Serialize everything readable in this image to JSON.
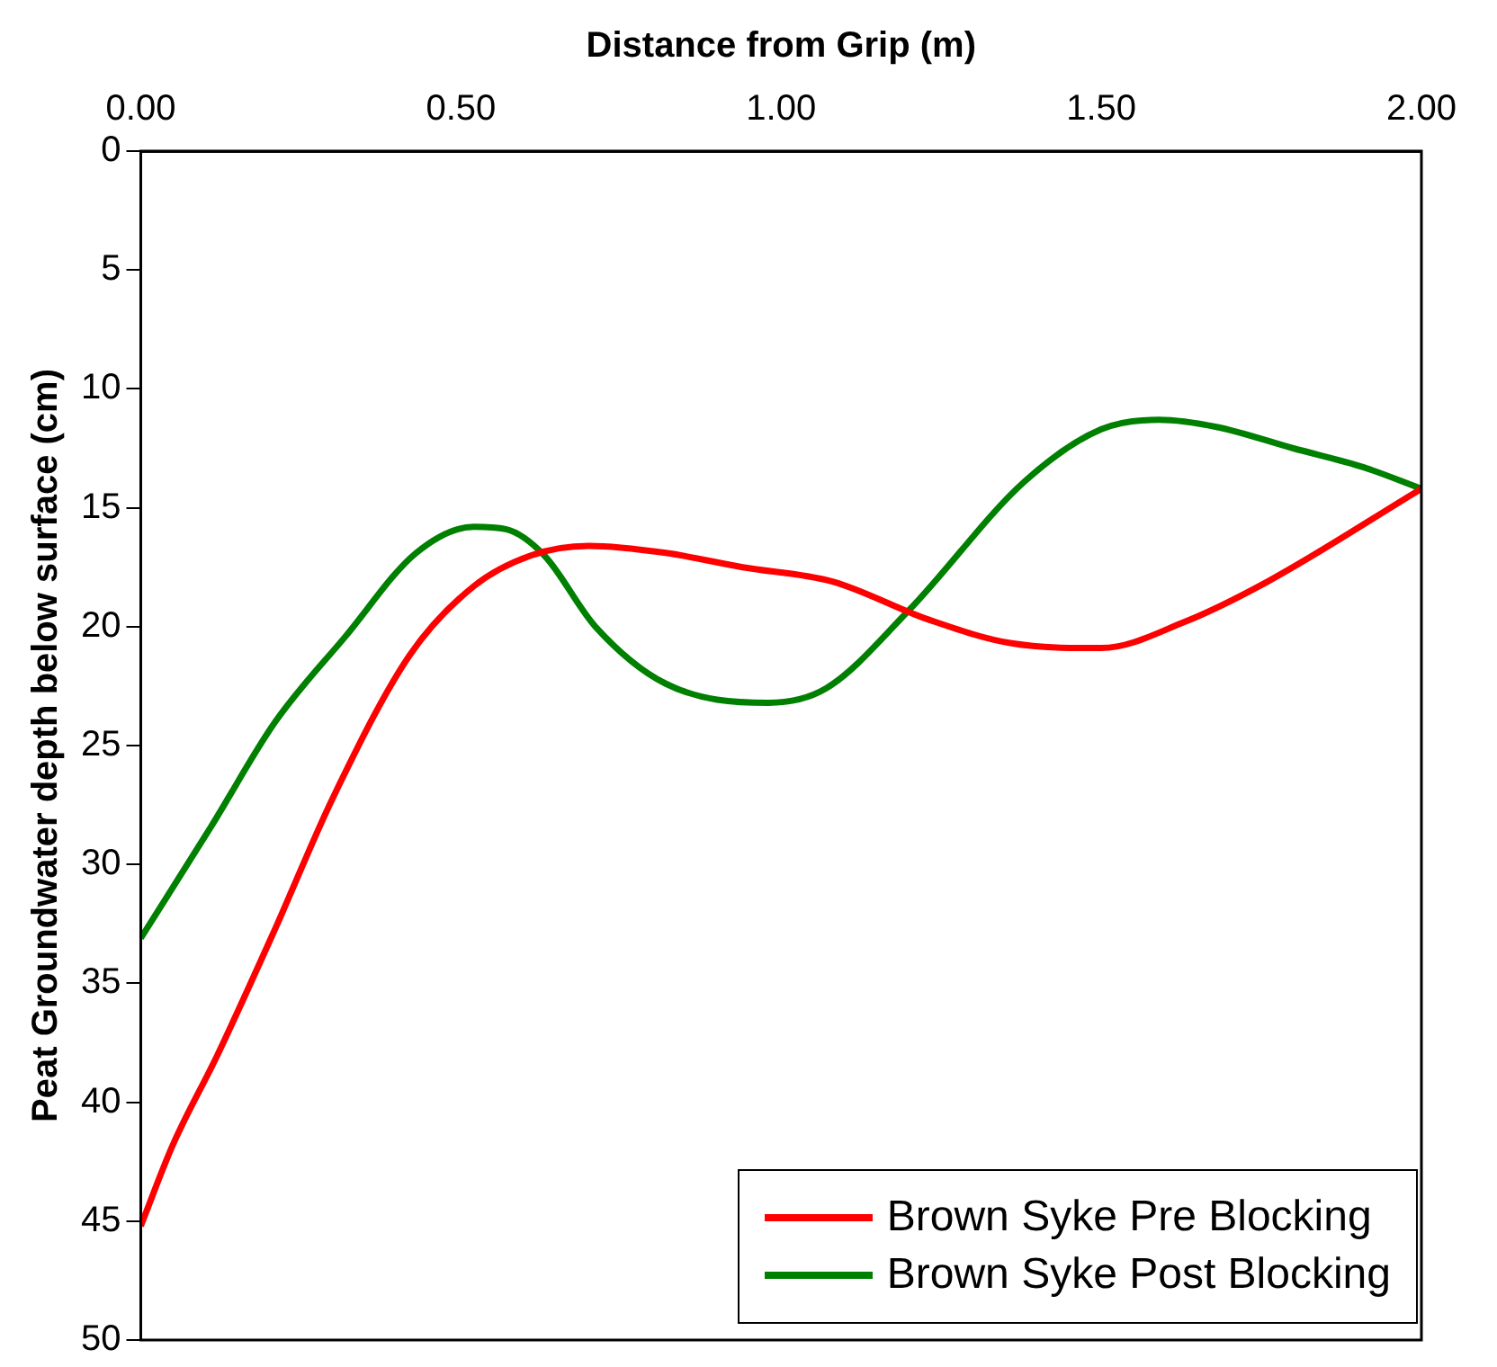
{
  "chart_data": {
    "type": "line",
    "xlabel": "Distance from Grip (m)",
    "ylabel": "Peat Groundwater depth below surface (cm)",
    "xlim": [
      0,
      2
    ],
    "xticks": [
      {
        "value": 0,
        "label": "0.00"
      },
      {
        "value": 0.5,
        "label": "0.50"
      },
      {
        "value": 1,
        "label": "1.00"
      },
      {
        "value": 1.5,
        "label": "1.50"
      },
      {
        "value": 2,
        "label": "2.00"
      }
    ],
    "ylim": [
      50,
      0
    ],
    "yticks": [
      0,
      5,
      10,
      15,
      20,
      25,
      30,
      35,
      40,
      45,
      50
    ],
    "grid": false,
    "legend": "bottom right",
    "marker": "none",
    "line_style": "solid",
    "series": [
      {
        "name": "Brown Syke Pre Blocking",
        "color": "#ff0000",
        "x": [
          0,
          0.05,
          0.12,
          0.21,
          0.3,
          0.42,
          0.52,
          0.61,
          0.7,
          0.82,
          0.94,
          1.08,
          1.23,
          1.36,
          1.5,
          1.63,
          1.76,
          2.0
        ],
        "values": [
          45.2,
          41.8,
          38,
          32.7,
          27.2,
          21.2,
          18.3,
          17,
          16.6,
          16.9,
          17.5,
          18.1,
          19.7,
          20.7,
          20.9,
          19.8,
          18.1,
          14.2
        ]
      },
      {
        "name": "Brown Syke Post Blocking",
        "color": "#008000",
        "x": [
          0,
          0.11,
          0.21,
          0.32,
          0.43,
          0.52,
          0.57,
          0.63,
          0.71,
          0.82,
          0.98,
          1.07,
          1.2,
          1.38,
          1.5,
          1.59,
          1.68,
          1.8,
          1.91,
          2.0
        ],
        "values": [
          33.1,
          28.4,
          24,
          20.4,
          16.9,
          15.8,
          15.9,
          17,
          20,
          22.4,
          23.2,
          22.6,
          19.3,
          13.9,
          11.7,
          11.3,
          11.6,
          12.5,
          13.3,
          14.2
        ]
      }
    ]
  }
}
